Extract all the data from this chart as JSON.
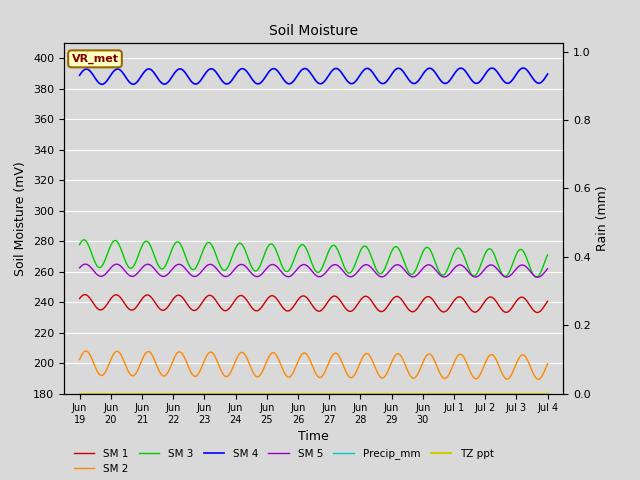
{
  "title": "Soil Moisture",
  "xlabel": "Time",
  "ylabel_left": "Soil Moisture (mV)",
  "ylabel_right": "Rain (mm)",
  "ylim_left": [
    180,
    410
  ],
  "ylim_right": [
    0.0,
    1.025
  ],
  "yticks_left": [
    180,
    200,
    220,
    240,
    260,
    280,
    300,
    320,
    340,
    360,
    380,
    400
  ],
  "yticks_right": [
    0.0,
    0.2,
    0.4,
    0.6,
    0.8,
    1.0
  ],
  "xtick_labels": [
    "Jun\n19",
    "Jun\n20",
    "Jun\n21",
    "Jun\n22",
    "Jun\n23",
    "Jun\n24",
    "Jun\n25",
    "Jun\n26",
    "Jun\n27",
    "Jun\n28",
    "Jun\n29",
    "Jun\n30",
    "Jul 1",
    "Jul 2",
    "Jul 3",
    "Jul 4"
  ],
  "background_color": "#d9d9d9",
  "annotation_text": "VR_met",
  "annotation_box_color": "#ffffc0",
  "annotation_text_color": "#800000",
  "annotation_edge_color": "#996600",
  "sm1_color": "#cc0000",
  "sm2_color": "#ff8800",
  "sm3_color": "#00cc00",
  "sm4_color": "#0000ff",
  "sm5_color": "#9900cc",
  "precip_color": "#00cccc",
  "tz_color": "#cccc00",
  "sm1_base": 240,
  "sm1_amp": 5,
  "sm1_trend": -0.12,
  "sm2_base": 200,
  "sm2_amp": 8,
  "sm2_trend": -0.18,
  "sm3_base": 272,
  "sm3_amp": 9,
  "sm3_trend": -0.45,
  "sm4_base": 388,
  "sm4_amp": 5,
  "sm4_trend": 0.05,
  "sm5_base": 261,
  "sm5_amp": 4,
  "sm5_trend": -0.04,
  "tz_value": 180,
  "n_points": 720,
  "cycles_per_day": 1.0,
  "legend_labels_row1": [
    "SM 1",
    "SM 2",
    "SM 3",
    "SM 4",
    "SM 5",
    "Precip_mm"
  ],
  "legend_labels_row2": [
    "TZ ppt"
  ]
}
